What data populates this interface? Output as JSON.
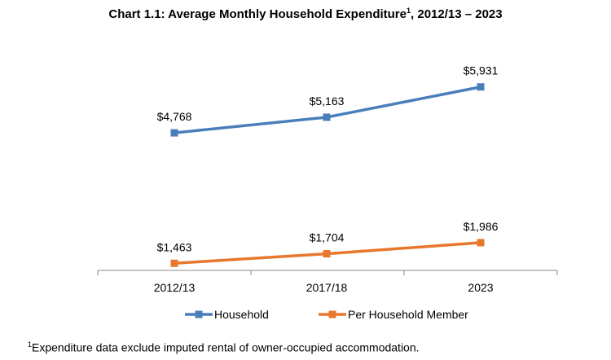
{
  "chart_data": {
    "type": "line",
    "title": "Chart 1.1: Average Monthly Household Expenditure",
    "title_superscript": "1",
    "title_suffix": ", 2012/13 – 2023",
    "categories": [
      "2012/13",
      "2017/18",
      "2023"
    ],
    "series": [
      {
        "name": "Household",
        "values": [
          4768,
          5163,
          5931
        ],
        "labels": [
          "$4,768",
          "$5,163",
          "$5,931"
        ],
        "color": "#4a7ebb"
      },
      {
        "name": "Per Household Member",
        "values": [
          1463,
          1704,
          1986
        ],
        "labels": [
          "$1,463",
          "$1,704",
          "$1,986"
        ],
        "color": "#e8772e"
      }
    ],
    "ylim": [
      0,
      6500
    ],
    "grid": false,
    "legend": "bottom",
    "footnote_marker": "1",
    "footnote": "Expenditure data exclude imputed rental of owner-occupied accommodation."
  }
}
